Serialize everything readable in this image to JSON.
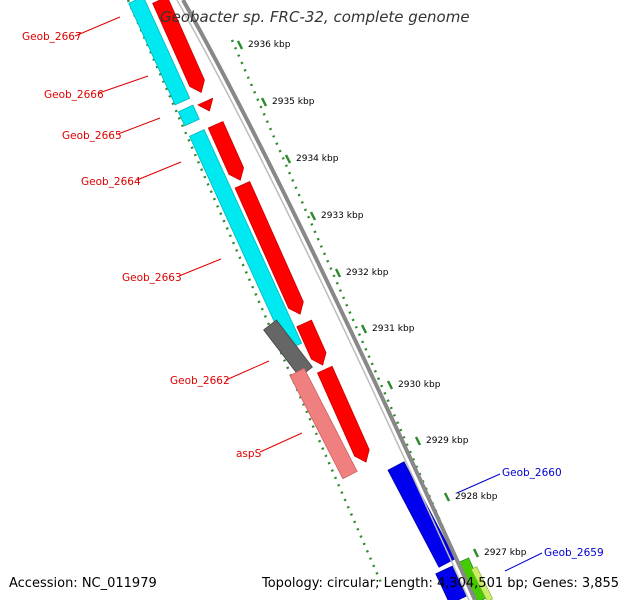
{
  "title": "Geobacter sp. FRC-32, complete genome",
  "accession": "Accession: NC_011979",
  "topology": "Topology: circular; Length: 4,304,501 bp; Genes: 3,855",
  "colors": {
    "forward_strand": "#ff0000",
    "reverse_strand_red": "#ff0000",
    "cds": "#00ffff",
    "gene_gray": "#666666",
    "pink": "#f08080",
    "blue": "#0000ff",
    "green": "#44cc00",
    "backbone": "#888888",
    "tick": "#2e8b2e",
    "label_red": "#dd0000",
    "label_blue": "#0000cc"
  },
  "scale_ticks": [
    "2936 kbp",
    "2935 kbp",
    "2934 kbp",
    "2933 kbp",
    "2932 kbp",
    "2931 kbp",
    "2930 kbp",
    "2929 kbp",
    "2928 kbp",
    "2927 kbp"
  ],
  "gene_labels": [
    {
      "text": "Geob_2667",
      "color": "red"
    },
    {
      "text": "Geob_2666",
      "color": "red"
    },
    {
      "text": "Geob_2665",
      "color": "red"
    },
    {
      "text": "Geob_2664",
      "color": "red"
    },
    {
      "text": "Geob_2663",
      "color": "red"
    },
    {
      "text": "Geob_2662",
      "color": "red"
    },
    {
      "text": "aspS",
      "color": "red"
    },
    {
      "text": "Geob_2660",
      "color": "blue"
    },
    {
      "text": "Geob_2659",
      "color": "blue"
    }
  ]
}
